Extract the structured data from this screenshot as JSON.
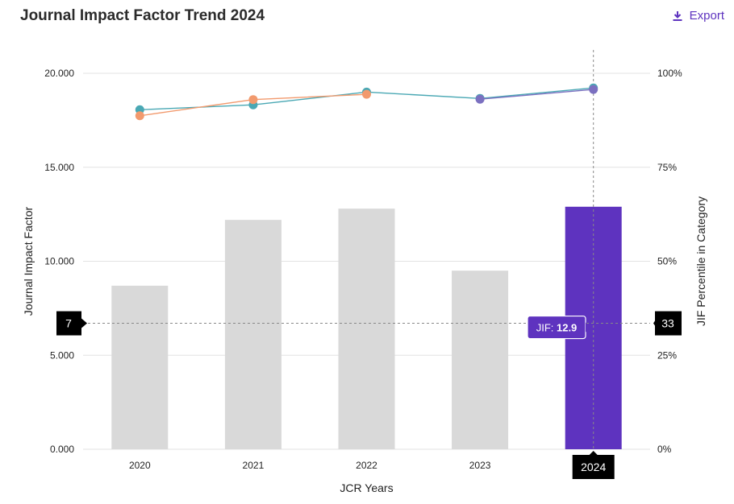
{
  "header": {
    "title": "Journal Impact Factor Trend 2024",
    "export_label": "Export"
  },
  "chart_data": {
    "type": "bar",
    "title": "Journal Impact Factor Trend 2024",
    "xlabel": "JCR Years",
    "ylabel": "Journal Impact Factor",
    "y2label": "JIF Percentile in Category",
    "categories": [
      "2020",
      "2021",
      "2022",
      "2023",
      "2024"
    ],
    "ylim": [
      0,
      20
    ],
    "y2lim": [
      0,
      100
    ],
    "yticks": [
      "0.000",
      "5.000",
      "10.000",
      "15.000",
      "20.000"
    ],
    "y2ticks": [
      "0%",
      "25%",
      "50%",
      "75%",
      "100%"
    ],
    "series": [
      {
        "name": "Journal Impact Factor",
        "kind": "bar",
        "axis": "left",
        "values": [
          8.7,
          12.2,
          12.8,
          9.5,
          12.9
        ]
      },
      {
        "name": "JIF Percentile (teal)",
        "kind": "line",
        "axis": "right",
        "values": [
          90.3,
          91.6,
          95.0,
          93.3,
          96.1
        ],
        "color": "#4aa8b4"
      },
      {
        "name": "JIF Percentile (orange)",
        "kind": "line",
        "axis": "right",
        "values": [
          88.7,
          93.0,
          94.4,
          null,
          null
        ],
        "color": "#f29a6e"
      },
      {
        "name": "JIF Percentile (purple)",
        "kind": "line",
        "axis": "right",
        "values": [
          null,
          null,
          null,
          93.1,
          95.7
        ],
        "color": "#7b70c0"
      }
    ],
    "highlight_category": "2024",
    "bar_color": "#d9d9d9",
    "highlight_color": "#5e33bf",
    "crosshair": {
      "left_label": "7",
      "right_label": "33",
      "x_label": "2024",
      "y_value": 6.7,
      "tooltip_prefix": "JIF: ",
      "tooltip_value": "12.9"
    }
  }
}
